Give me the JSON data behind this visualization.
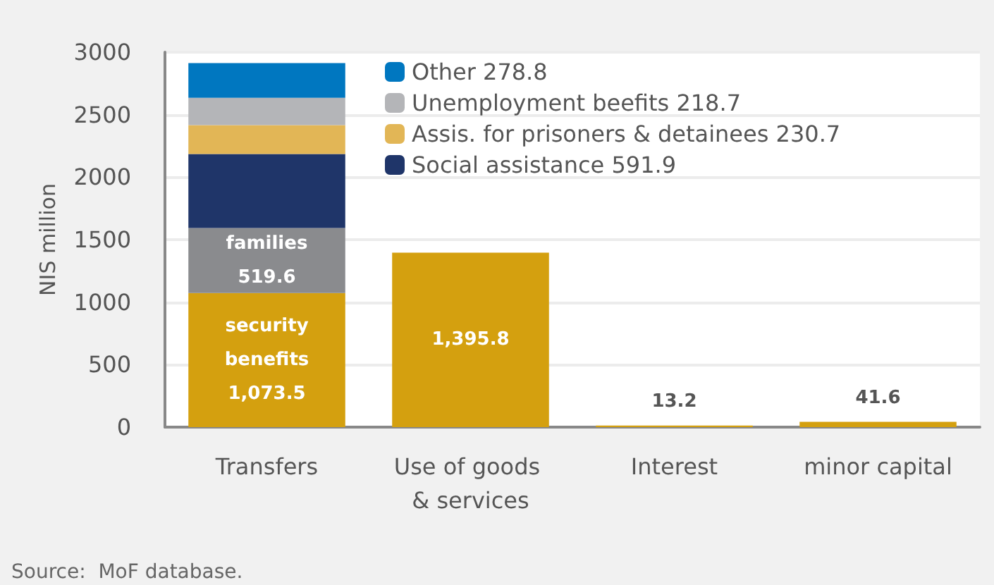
{
  "chart_data": {
    "type": "bar",
    "stacked": true,
    "ylabel": "NIS million",
    "categories": [
      "Transfers",
      "Use of goods & services",
      "Interest",
      "minor capital"
    ],
    "series": [
      {
        "name": "security benefits",
        "color": "#d4a00f",
        "values": [
          1073.5,
          null,
          null,
          null
        ],
        "value_labels": [
          "1,073.5",
          null,
          null,
          null
        ]
      },
      {
        "color": "#d4a00f",
        "values": [
          null,
          1395.8,
          13.2,
          41.6
        ],
        "value_labels": [
          null,
          "1,395.8",
          "13.2",
          "41.6"
        ]
      },
      {
        "name": "families",
        "color": "#8a8b8e",
        "values": [
          519.6,
          null,
          null,
          null
        ],
        "value_labels": [
          "519.6",
          null,
          null,
          null
        ]
      },
      {
        "name": "Social assistance 591.9",
        "color": "#1f3569",
        "values": [
          591.9,
          null,
          null,
          null
        ]
      },
      {
        "name": "Assis. for prisoners & detainees 230.7",
        "color": "#e2b656",
        "values": [
          230.7,
          null,
          null,
          null
        ]
      },
      {
        "name": "Unemployment beefits 218.7",
        "color": "#b4b5b8",
        "values": [
          218.7,
          null,
          null,
          null
        ]
      },
      {
        "name": "Other 278.8",
        "color": "#0077c0",
        "values": [
          278.8,
          null,
          null,
          null
        ]
      }
    ],
    "ylim": [
      0,
      3000
    ],
    "yticks": [
      0,
      500,
      1000,
      1500,
      2000,
      2500,
      3000
    ],
    "grid": "y",
    "legend": "top",
    "annotations": [
      "Source:  MoF database."
    ]
  }
}
